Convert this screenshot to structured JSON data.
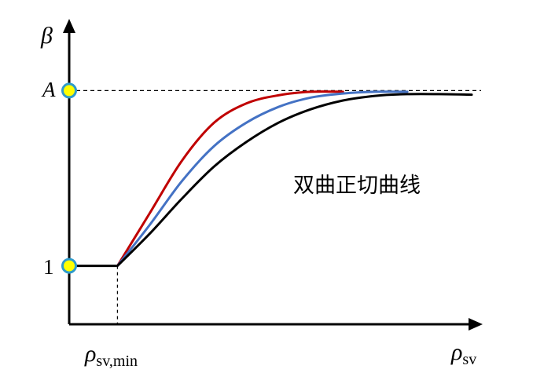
{
  "chart_data": {
    "type": "line",
    "ylabel": "β",
    "xlabel_main": "ρ",
    "xlabel_sub": "sv",
    "x_marker_main": "ρ",
    "x_marker_sub": "sv,min",
    "y_ticks": [
      {
        "label": "1",
        "value": 1
      },
      {
        "label": "A",
        "value": 4
      }
    ],
    "annotation": "双曲正切曲线",
    "xlim": [
      0,
      10
    ],
    "ylim": [
      0,
      5
    ],
    "x_min_point": 1.2,
    "A": 4,
    "grid": false,
    "series": [
      {
        "color": "#c00000",
        "points": [
          [
            0,
            1
          ],
          [
            1.2,
            1
          ],
          [
            2.0,
            1.9
          ],
          [
            2.8,
            2.8
          ],
          [
            3.6,
            3.45
          ],
          [
            4.4,
            3.78
          ],
          [
            5.2,
            3.92
          ],
          [
            6.0,
            3.98
          ],
          [
            6.8,
            3.98
          ]
        ]
      },
      {
        "color": "#4472c4",
        "points": [
          [
            1.2,
            1
          ],
          [
            2.0,
            1.7
          ],
          [
            2.8,
            2.45
          ],
          [
            3.6,
            3.05
          ],
          [
            4.4,
            3.45
          ],
          [
            5.2,
            3.72
          ],
          [
            6.0,
            3.88
          ],
          [
            6.8,
            3.95
          ],
          [
            7.6,
            3.98
          ],
          [
            8.4,
            3.98
          ]
        ]
      },
      {
        "color": "#000000",
        "points": [
          [
            1.2,
            1
          ],
          [
            2.0,
            1.55
          ],
          [
            2.8,
            2.15
          ],
          [
            3.6,
            2.7
          ],
          [
            4.4,
            3.12
          ],
          [
            5.2,
            3.45
          ],
          [
            6.0,
            3.68
          ],
          [
            6.8,
            3.83
          ],
          [
            7.6,
            3.91
          ],
          [
            8.4,
            3.94
          ],
          [
            9.2,
            3.94
          ],
          [
            10.0,
            3.93
          ]
        ]
      }
    ],
    "colors": {
      "axis": "#000000",
      "marker_fill": "#ffff00",
      "marker_stroke": "#2e9bcb",
      "dashed": "#000000"
    }
  }
}
